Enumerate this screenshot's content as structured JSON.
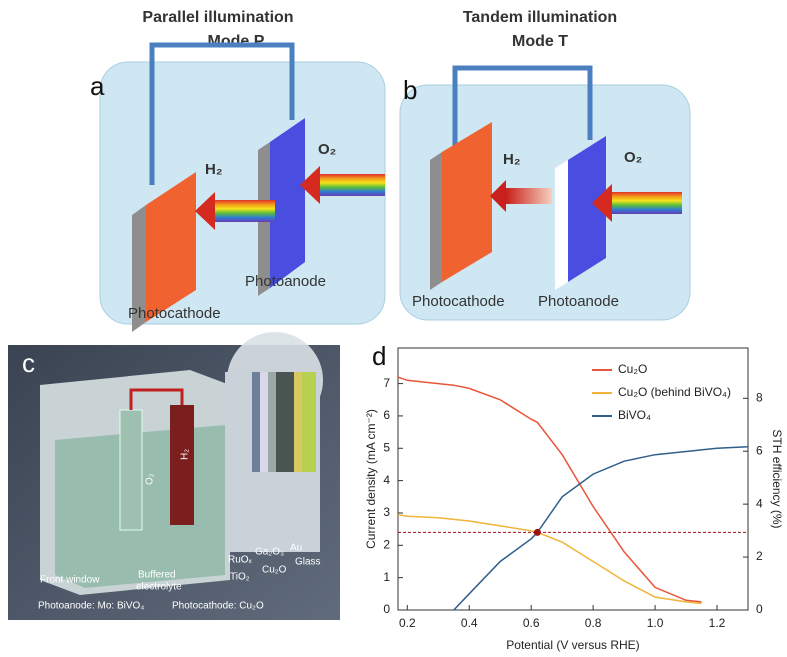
{
  "panels": {
    "a": {
      "label": "a",
      "title": "Parallel illumination",
      "subtitle": "Mode P",
      "h2": "H₂",
      "o2": "O₂",
      "photocathode": "Photocathode",
      "photoanode": "Photoanode"
    },
    "b": {
      "label": "b",
      "title": "Tandem illumination",
      "subtitle": "Mode T",
      "h2": "H₂",
      "o2": "O₂",
      "photocathode": "Photocathode",
      "photoanode": "Photoanode"
    },
    "c": {
      "label": "c",
      "o2": "O₂",
      "h2": "H₂",
      "front_window": "Front window",
      "buffered": "Buffered",
      "electrolyte": "electrolyte",
      "photoanode": "Photoanode: Mo: BiVO₄",
      "photocathode": "Photocathode: Cu₂O",
      "layers": [
        "RuOₓ",
        "TiO₂",
        "Ga₂O₃",
        "Cu₂O",
        "Au",
        "Glass"
      ]
    },
    "d": {
      "label": "d"
    }
  },
  "chart_data": {
    "type": "line",
    "xlabel": "Potential (V versus RHE)",
    "ylabel": "Current density (mA cm⁻²)",
    "y2label": "STH efficiency (%)",
    "x": [
      0.17,
      0.2,
      0.3,
      0.35,
      0.4,
      0.5,
      0.6,
      0.62,
      0.7,
      0.8,
      0.9,
      1.0,
      1.1,
      1.15,
      1.2,
      1.3
    ],
    "series": [
      {
        "name": "Cu₂O",
        "color": "#e8553a",
        "values": [
          7.2,
          7.1,
          7.0,
          6.95,
          6.85,
          6.5,
          5.9,
          5.8,
          4.8,
          3.2,
          1.8,
          0.7,
          0.3,
          0.25,
          null,
          null
        ]
      },
      {
        "name": "Cu₂O (behind BiVO₄)",
        "color": "#f0b43a",
        "values": [
          2.95,
          2.9,
          2.85,
          2.8,
          2.75,
          2.6,
          2.45,
          2.4,
          2.1,
          1.5,
          0.9,
          0.4,
          0.25,
          0.2,
          null,
          null
        ]
      },
      {
        "name": "BiVO₄",
        "color": "#2f5f8a",
        "values": [
          null,
          null,
          null,
          0,
          0.5,
          1.5,
          2.2,
          2.4,
          3.5,
          4.2,
          4.6,
          4.8,
          4.9,
          4.95,
          5.0,
          5.05
        ]
      }
    ],
    "operating_point": {
      "x": 0.62,
      "y": 2.4,
      "color": "#a01010"
    },
    "xlim": [
      0.17,
      1.3
    ],
    "xticks": [
      0.2,
      0.4,
      0.6,
      0.8,
      {
        "value": 1,
        "label": "1.0"
      },
      1.2
    ],
    "ylim": [
      0,
      8.1
    ],
    "yticks": [
      0,
      1,
      2,
      3,
      4,
      5,
      6,
      7
    ],
    "y2lim": [
      0,
      9.9
    ],
    "y2ticks": [
      0,
      2,
      4,
      6,
      8
    ],
    "legend": "upper right"
  }
}
